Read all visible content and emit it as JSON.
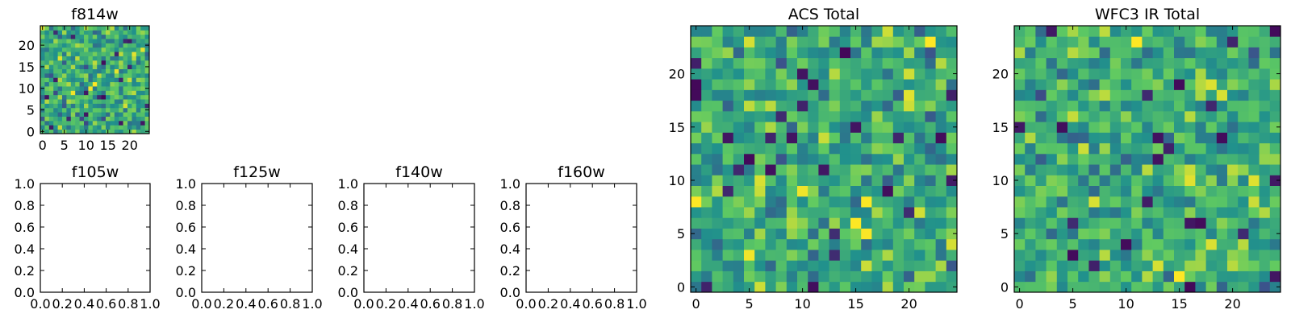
{
  "colormap": [
    "#440154",
    "#3b528b",
    "#21918c",
    "#5ec962",
    "#fde725"
  ],
  "chart_data": [
    {
      "type": "heatmap",
      "name": "f814w",
      "title": "f814w",
      "grid_size": 25,
      "xlim": [
        -0.5,
        24.5
      ],
      "ylim": [
        -0.5,
        24.5
      ],
      "xticks": [
        0,
        5,
        10,
        15,
        20
      ],
      "yticks": [
        0,
        5,
        10,
        15,
        20
      ],
      "seed": 11,
      "values": null
    },
    {
      "type": "heatmap",
      "name": "acs-total",
      "title": "ACS Total",
      "grid_size": 25,
      "xlim": [
        -0.5,
        24.5
      ],
      "ylim": [
        -0.5,
        24.5
      ],
      "xticks": [
        0,
        5,
        10,
        15,
        20
      ],
      "yticks": [
        0,
        5,
        10,
        15,
        20
      ],
      "seed": 23,
      "values": null
    },
    {
      "type": "heatmap",
      "name": "wfc3-ir-total",
      "title": "WFC3 IR Total",
      "grid_size": 25,
      "xlim": [
        -0.5,
        24.5
      ],
      "ylim": [
        -0.5,
        24.5
      ],
      "xticks": [
        0,
        5,
        10,
        15,
        20
      ],
      "yticks": [
        0,
        5,
        10,
        15,
        20
      ],
      "seed": 37,
      "values": null
    },
    {
      "type": "empty",
      "name": "f105w",
      "title": "f105w",
      "xlim": [
        0.0,
        1.0
      ],
      "ylim": [
        0.0,
        1.0
      ],
      "xticks": [
        "0.0",
        "0.2",
        "0.4",
        "0.6",
        "0.8",
        "1.0"
      ],
      "yticks": [
        "0.0",
        "0.2",
        "0.4",
        "0.6",
        "0.8",
        "1.0"
      ]
    },
    {
      "type": "empty",
      "name": "f125w",
      "title": "f125w",
      "xlim": [
        0.0,
        1.0
      ],
      "ylim": [
        0.0,
        1.0
      ],
      "xticks": [
        "0.0",
        "0.2",
        "0.4",
        "0.6",
        "0.8",
        "1.0"
      ],
      "yticks": [
        "0.0",
        "0.2",
        "0.4",
        "0.6",
        "0.8",
        "1.0"
      ]
    },
    {
      "type": "empty",
      "name": "f140w",
      "title": "f140w",
      "xlim": [
        0.0,
        1.0
      ],
      "ylim": [
        0.0,
        1.0
      ],
      "xticks": [
        "0.0",
        "0.2",
        "0.4",
        "0.6",
        "0.8",
        "1.0"
      ],
      "yticks": [
        "0.0",
        "0.2",
        "0.4",
        "0.6",
        "0.8",
        "1.0"
      ]
    },
    {
      "type": "empty",
      "name": "f160w",
      "title": "f160w",
      "xlim": [
        0.0,
        1.0
      ],
      "ylim": [
        0.0,
        1.0
      ],
      "xticks": [
        "0.0",
        "0.2",
        "0.4",
        "0.6",
        "0.8",
        "1.0"
      ],
      "yticks": [
        "0.0",
        "0.2",
        "0.4",
        "0.6",
        "0.8",
        "1.0"
      ]
    }
  ]
}
